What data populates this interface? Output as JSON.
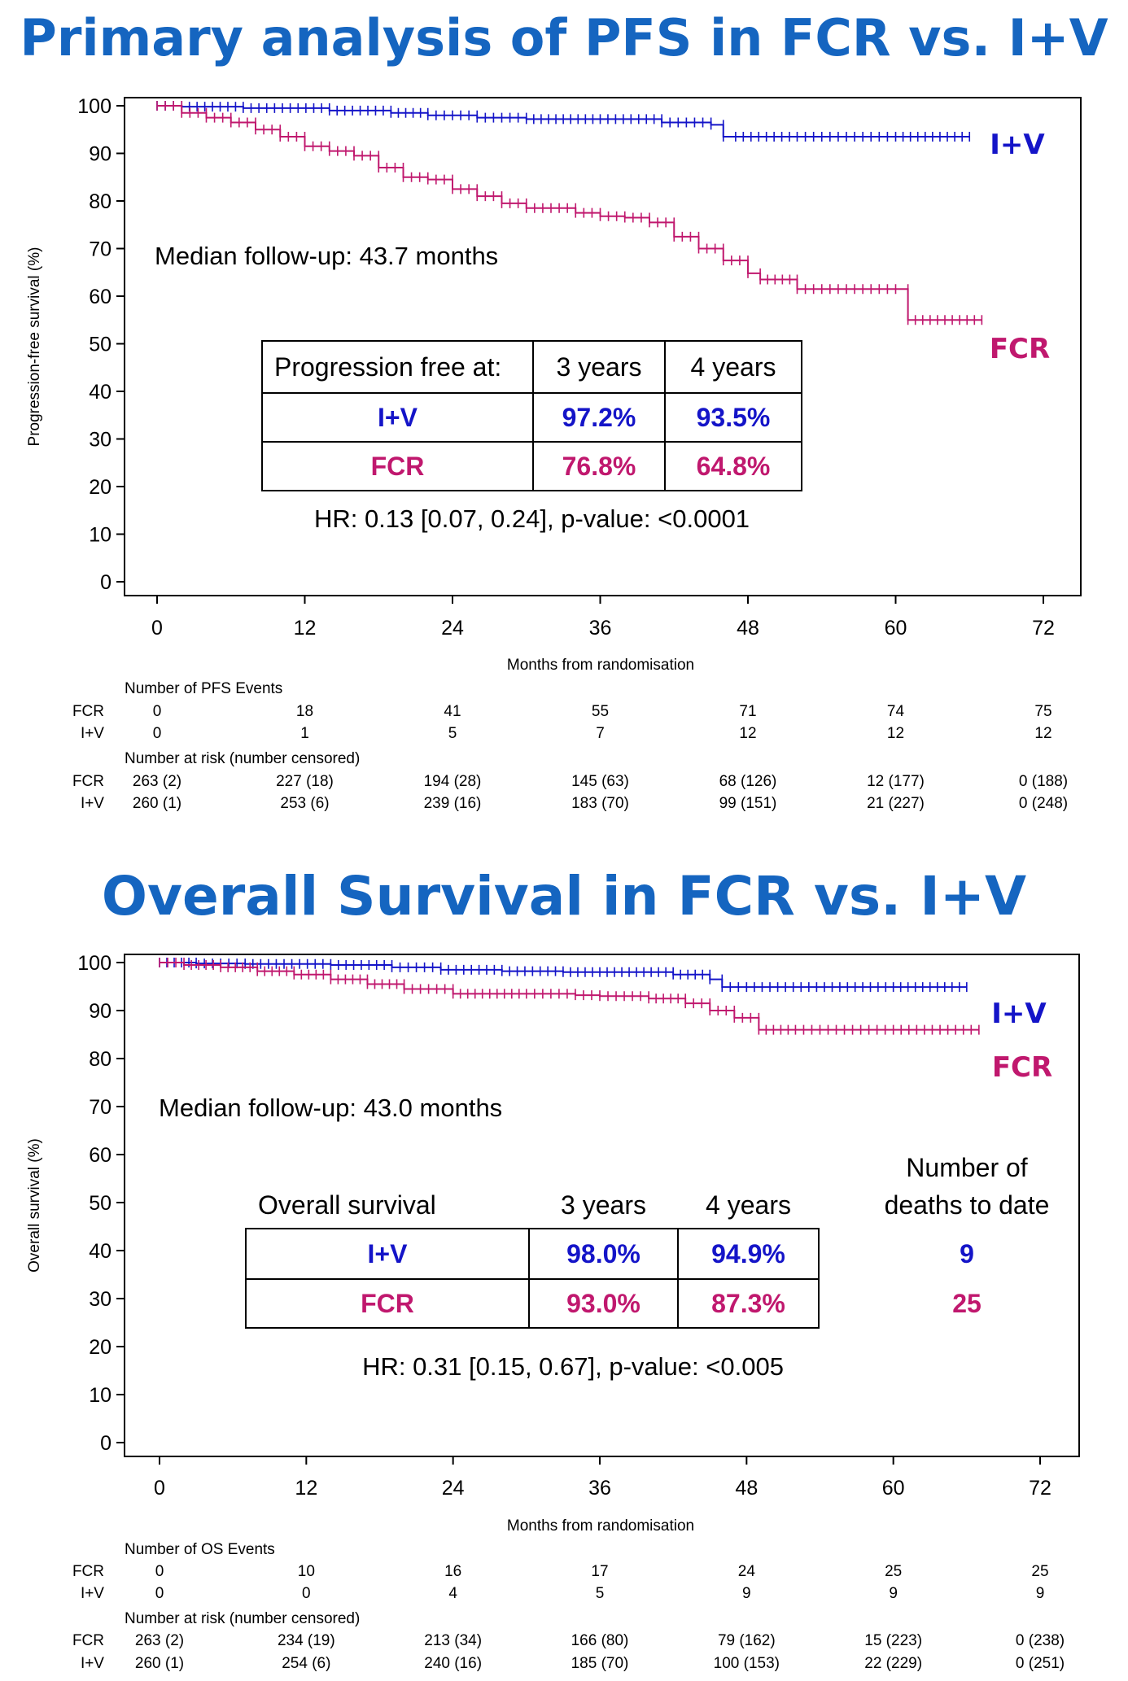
{
  "colors": {
    "iv": "#1414c8",
    "fcr": "#c0186e",
    "title": "#1565c0",
    "axis": "#000000"
  },
  "chart_data": [
    {
      "type": "line",
      "title": "Primary analysis of PFS in FCR vs. I+V",
      "xlabel": "Months from randomisation",
      "ylabel": "Progression-free survival (%)",
      "xlim": [
        0,
        72
      ],
      "ylim": [
        0,
        100
      ],
      "xticks": [
        "0",
        "12",
        "24",
        "36",
        "48",
        "60",
        "72"
      ],
      "yticks": [
        "0",
        "10",
        "20",
        "30",
        "40",
        "50",
        "60",
        "70",
        "80",
        "90",
        "100"
      ],
      "series": [
        {
          "name": "I+V",
          "color": "#1414c8",
          "x": [
            0,
            2,
            7,
            14,
            19,
            22,
            26,
            30,
            36,
            41,
            45,
            46,
            47,
            52,
            56,
            60,
            66
          ],
          "y": [
            100,
            99.8,
            99.5,
            99,
            98.5,
            98,
            97.5,
            97.2,
            97.2,
            96.5,
            96,
            93.5,
            93.5,
            93.5,
            93.5,
            93.5,
            93.5
          ]
        },
        {
          "name": "FCR",
          "color": "#c0186e",
          "x": [
            0,
            2,
            4,
            6,
            8,
            10,
            12,
            14,
            16,
            18,
            20,
            22,
            24,
            26,
            28,
            30,
            32,
            34,
            36,
            38,
            40,
            42,
            44,
            46,
            48,
            49,
            52,
            56,
            60,
            61,
            64,
            67
          ],
          "y": [
            100,
            98.5,
            97.5,
            96.5,
            95,
            93.5,
            91.5,
            90.5,
            89.5,
            87,
            85,
            84.5,
            82.5,
            81,
            79.5,
            78.5,
            78.5,
            77.5,
            76.8,
            76.5,
            75.5,
            72.5,
            70,
            67.5,
            64.8,
            63.5,
            61.5,
            61.5,
            61.5,
            55,
            55,
            55
          ]
        }
      ],
      "labels": {
        "iv": "I+V",
        "fcr": "FCR"
      },
      "median_followup": "Median follow-up: 43.7 months",
      "table": {
        "header": [
          "Progression free at:",
          "3 years",
          "4 years"
        ],
        "rows": [
          {
            "label": "I+V",
            "y3": "97.2%",
            "y4": "93.5%"
          },
          {
            "label": "FCR",
            "y3": "76.8%",
            "y4": "64.8%"
          }
        ]
      },
      "hr": "HR: 0.13 [0.07, 0.24], p-value: <0.0001",
      "events": {
        "title": "Number of PFS Events",
        "rows": [
          {
            "label": "FCR",
            "values": [
              "0",
              "18",
              "41",
              "55",
              "71",
              "74",
              "75"
            ]
          },
          {
            "label": "I+V",
            "values": [
              "0",
              "1",
              "5",
              "7",
              "12",
              "12",
              "12"
            ]
          }
        ]
      },
      "risk": {
        "title": "Number at risk (number censored)",
        "rows": [
          {
            "label": "FCR",
            "values": [
              "263 (2)",
              "227 (18)",
              "194 (28)",
              "145 (63)",
              "68 (126)",
              "12 (177)",
              "0 (188)"
            ]
          },
          {
            "label": "I+V",
            "values": [
              "260 (1)",
              "253 (6)",
              "239 (16)",
              "183 (70)",
              "99 (151)",
              "21 (227)",
              "0 (248)"
            ]
          }
        ]
      }
    },
    {
      "type": "line",
      "title": "Overall Survival in FCR vs. I+V",
      "xlabel": "Months from randomisation",
      "ylabel": "Overall survival (%)",
      "xlim": [
        0,
        72
      ],
      "ylim": [
        0,
        100
      ],
      "xticks": [
        "0",
        "12",
        "24",
        "36",
        "48",
        "60",
        "72"
      ],
      "yticks": [
        "0",
        "10",
        "20",
        "30",
        "40",
        "50",
        "60",
        "70",
        "80",
        "90",
        "100"
      ],
      "series": [
        {
          "name": "I+V",
          "color": "#1414c8",
          "x": [
            0,
            3,
            7,
            14,
            19,
            23,
            28,
            33,
            36,
            42,
            45,
            46,
            48,
            55,
            60,
            66
          ],
          "y": [
            100,
            99.8,
            99.7,
            99.5,
            99,
            98.5,
            98.2,
            98,
            98,
            97.5,
            96.5,
            94.9,
            94.9,
            94.9,
            94.9,
            94.9
          ]
        },
        {
          "name": "FCR",
          "color": "#c0186e",
          "x": [
            0,
            2,
            5,
            8,
            11,
            14,
            17,
            20,
            24,
            30,
            34,
            36,
            40,
            43,
            45,
            47,
            49,
            52,
            56,
            60,
            67
          ],
          "y": [
            100,
            99.5,
            99,
            98.2,
            97.5,
            96.5,
            95.5,
            94.5,
            93.5,
            93.5,
            93.2,
            93,
            92.5,
            91.5,
            90,
            88.5,
            86,
            86,
            86,
            86,
            86
          ]
        }
      ],
      "labels": {
        "iv": "I+V",
        "fcr": "FCR"
      },
      "median_followup": "Median follow-up: 43.0 months",
      "table": {
        "header": [
          "Overall survival",
          "3 years",
          "4 years"
        ],
        "deaths_header_1": "Number of",
        "deaths_header_2": "deaths to date",
        "rows": [
          {
            "label": "I+V",
            "y3": "98.0%",
            "y4": "94.9%",
            "deaths": "9"
          },
          {
            "label": "FCR",
            "y3": "93.0%",
            "y4": "87.3%",
            "deaths": "25"
          }
        ]
      },
      "hr": "HR: 0.31 [0.15, 0.67], p-value: <0.005",
      "events": {
        "title": "Number of OS Events",
        "rows": [
          {
            "label": "FCR",
            "values": [
              "0",
              "10",
              "16",
              "17",
              "24",
              "25",
              "25"
            ]
          },
          {
            "label": "I+V",
            "values": [
              "0",
              "0",
              "4",
              "5",
              "9",
              "9",
              "9"
            ]
          }
        ]
      },
      "risk": {
        "title": "Number at risk (number censored)",
        "rows": [
          {
            "label": "FCR",
            "values": [
              "263 (2)",
              "234 (19)",
              "213 (34)",
              "166 (80)",
              "79 (162)",
              "15 (223)",
              "0 (238)"
            ]
          },
          {
            "label": "I+V",
            "values": [
              "260 (1)",
              "254 (6)",
              "240 (16)",
              "185 (70)",
              "100 (153)",
              "22 (229)",
              "0 (251)"
            ]
          }
        ]
      }
    }
  ]
}
